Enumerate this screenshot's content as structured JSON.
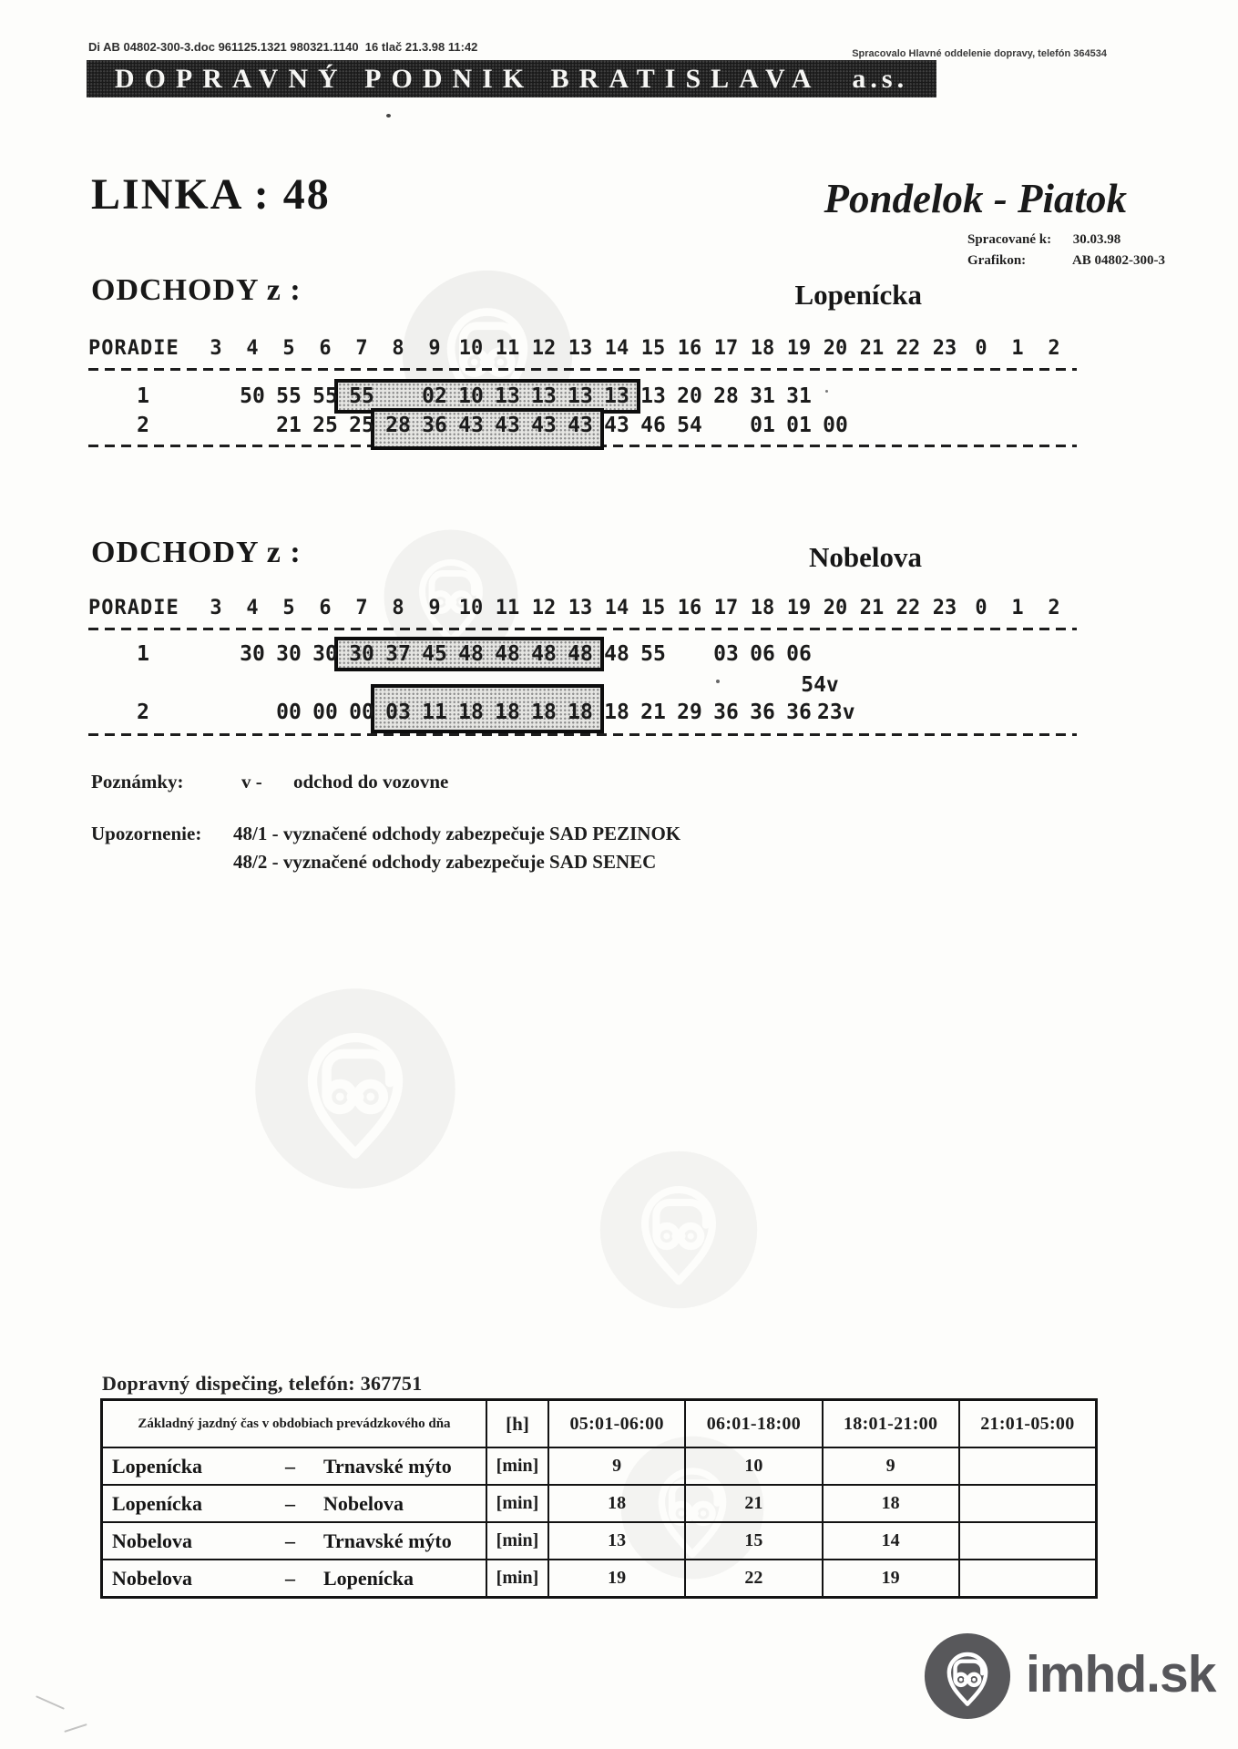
{
  "document": {
    "meta_left": "Di AB 04802-300-3.doc 961125.1321 980321.1140  16 tlač 21.3.98 11:42",
    "meta_right": "Spracovalo Hlavné oddelenie dopravy, telefón 364534",
    "company_banner": {
      "name": "DOPRAVNÝ PODNIK BRATISLAVA",
      "suffix": "a.s."
    },
    "line_title": "LINKA : 48",
    "validity_days": "Pondelok - Piatok",
    "processed": {
      "label": "Spracované k:",
      "value": "30.03.98"
    },
    "grafikon": {
      "label": "Grafikon:",
      "value": "AB 04802-300-3"
    }
  },
  "timetables": [
    {
      "section_title": "ODCHODY z :",
      "stop": "Lopenícka",
      "header_label": "PORADIE",
      "hours": [
        "3",
        "4",
        "5",
        "6",
        "7",
        "8",
        "9",
        "10",
        "11",
        "12",
        "13",
        "14",
        "15",
        "16",
        "17",
        "18",
        "19",
        "20",
        "21",
        "22",
        "23",
        "0",
        "1",
        "2"
      ],
      "rows": [
        {
          "order": "1",
          "cells": [
            "",
            "50",
            "55",
            "55",
            "55",
            "",
            "02",
            "10",
            "13",
            "13",
            "13",
            "13",
            "13",
            "20",
            "28",
            "31",
            "31",
            "",
            "",
            "",
            "",
            "",
            "",
            ""
          ],
          "box": {
            "start": 4,
            "end": 11
          }
        },
        {
          "order": "2",
          "cells": [
            "",
            "",
            "21",
            "25",
            "25",
            "28",
            "36",
            "43",
            "43",
            "43",
            "43",
            "43",
            "46",
            "54",
            "",
            "01",
            "01",
            "00",
            "",
            "",
            "",
            "",
            "",
            ""
          ],
          "box": {
            "start": 5,
            "end": 10
          }
        }
      ]
    },
    {
      "section_title": "ODCHODY z :",
      "stop": "Nobelova",
      "header_label": "PORADIE",
      "hours": [
        "3",
        "4",
        "5",
        "6",
        "7",
        "8",
        "9",
        "10",
        "11",
        "12",
        "13",
        "14",
        "15",
        "16",
        "17",
        "18",
        "19",
        "20",
        "21",
        "22",
        "23",
        "0",
        "1",
        "2"
      ],
      "rows": [
        {
          "order": "1",
          "cells": [
            "",
            "30",
            "30",
            "30",
            "30",
            "37",
            "45",
            "48",
            "48",
            "48",
            "48",
            "48",
            "55",
            "",
            "03",
            "06",
            "06",
            "",
            "",
            "",
            "",
            "",
            "",
            ""
          ],
          "box": {
            "start": 4,
            "end": 10
          },
          "extra": {
            "col": 16,
            "value": "54v"
          }
        },
        {
          "order": "2",
          "cells": [
            "",
            "",
            "00",
            "00",
            "00",
            "03",
            "11",
            "18",
            "18",
            "18",
            "18",
            "18",
            "21",
            "29",
            "36",
            "36",
            "36",
            "23v",
            "",
            "",
            "",
            "",
            "",
            ""
          ],
          "box": {
            "start": 5,
            "end": 10
          }
        }
      ]
    }
  ],
  "notes": {
    "label": "Poznámky:",
    "symbol": "v -",
    "text": "odchod do vozovne"
  },
  "warning": {
    "label": "Upozornenie:",
    "lines": [
      "48/1 - vyznačené odchody zabezpečuje SAD PEZINOK",
      "48/2 - vyznačené odchody zabezpečuje SAD SENEC"
    ]
  },
  "dispatch_line": "Dopravný dispečing, telefón:  367751",
  "travel_table": {
    "header": "Základný jazdný čas v obdobiach prevádzkového dňa",
    "unit_header": "[h]",
    "periods": [
      "05:01-06:00",
      "06:01-18:00",
      "18:01-21:00",
      "21:01-05:00"
    ],
    "rows": [
      {
        "from": "Lopenícka",
        "dash": "–",
        "to": "Trnavské mýto",
        "unit": "[min]",
        "values": [
          "9",
          "10",
          "9",
          ""
        ]
      },
      {
        "from": "Lopenícka",
        "dash": "–",
        "to": "Nobelova",
        "unit": "[min]",
        "values": [
          "18",
          "21",
          "18",
          ""
        ]
      },
      {
        "from": "Nobelova",
        "dash": "–",
        "to": "Trnavské mýto",
        "unit": "[min]",
        "values": [
          "13",
          "15",
          "14",
          ""
        ]
      },
      {
        "from": "Nobelova",
        "dash": "–",
        "to": "Lopenícka",
        "unit": "[min]",
        "values": [
          "19",
          "22",
          "19",
          ""
        ]
      }
    ]
  },
  "branding": {
    "logo_text": "imhd.sk"
  }
}
